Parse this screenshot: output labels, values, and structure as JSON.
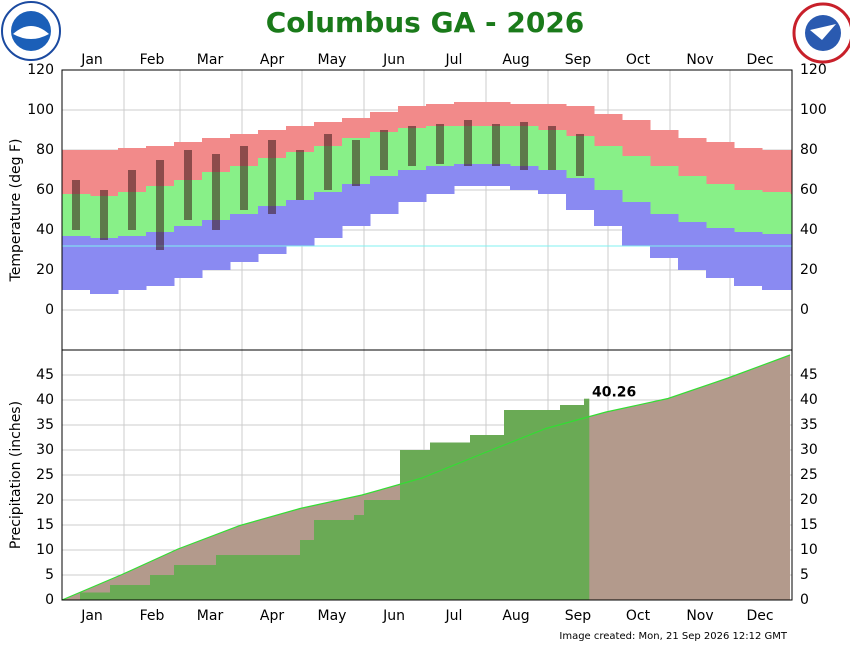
{
  "title": "Columbus GA - 2026",
  "footer": "Image created: Mon, 21 Sep 2026 12:12 GMT",
  "chart_data": [
    {
      "type": "band",
      "ylabel": "Temperature (deg F)",
      "xlim": [
        1,
        366
      ],
      "xticks": [
        {
          "value": 16,
          "label": "Jan"
        },
        {
          "value": 46,
          "label": "Feb"
        },
        {
          "value": 75,
          "label": "Mar"
        },
        {
          "value": 106,
          "label": "Apr"
        },
        {
          "value": 136,
          "label": "May"
        },
        {
          "value": 167,
          "label": "Jun"
        },
        {
          "value": 197,
          "label": "Jul"
        },
        {
          "value": 228,
          "label": "Aug"
        },
        {
          "value": 259,
          "label": "Sep"
        },
        {
          "value": 289,
          "label": "Oct"
        },
        {
          "value": 320,
          "label": "Nov"
        },
        {
          "value": 350,
          "label": "Dec"
        }
      ],
      "xgrid": [
        32,
        60,
        91,
        121,
        152,
        182,
        213,
        244,
        274,
        305,
        335
      ],
      "ylim": [
        -20,
        120
      ],
      "yticks": [
        0,
        20,
        40,
        60,
        80,
        100,
        120
      ],
      "freezing": {
        "value": 32,
        "color": "#80f0f0"
      },
      "x": [
        1,
        15,
        29,
        43,
        57,
        71,
        85,
        99,
        113,
        127,
        141,
        155,
        169,
        183,
        197,
        211,
        225,
        239,
        253,
        267,
        281,
        295,
        309,
        323,
        337,
        351,
        365
      ],
      "record_high": {
        "color": "#f28a8a",
        "values": [
          80,
          80,
          81,
          82,
          84,
          86,
          88,
          90,
          92,
          94,
          96,
          99,
          102,
          103,
          104,
          104,
          103,
          103,
          102,
          98,
          95,
          90,
          86,
          84,
          81,
          80,
          80
        ]
      },
      "normal_high": {
        "color": "#88f088",
        "values": [
          58,
          57,
          59,
          62,
          65,
          69,
          72,
          76,
          79,
          82,
          86,
          89,
          91,
          92,
          92,
          92,
          92,
          90,
          87,
          82,
          77,
          72,
          67,
          63,
          60,
          59,
          58
        ]
      },
      "normal_low": {
        "color": "#8a8af2",
        "values": [
          37,
          36,
          37,
          39,
          42,
          45,
          48,
          52,
          55,
          59,
          63,
          67,
          70,
          72,
          73,
          73,
          72,
          70,
          66,
          60,
          54,
          48,
          44,
          41,
          39,
          38,
          38
        ]
      },
      "record_low": {
        "values": [
          10,
          8,
          10,
          12,
          16,
          20,
          24,
          28,
          32,
          36,
          42,
          48,
          54,
          58,
          62,
          62,
          60,
          58,
          50,
          42,
          32,
          26,
          20,
          16,
          12,
          10,
          10
        ]
      },
      "observed": {
        "color": "#3a1818",
        "high": [
          65,
          60,
          70,
          75,
          80,
          78,
          82,
          85,
          80,
          88,
          85,
          90,
          92,
          93,
          95,
          93,
          94,
          92,
          88,
          null,
          null,
          null,
          null,
          null,
          null,
          null,
          null
        ],
        "low": [
          40,
          35,
          40,
          30,
          45,
          40,
          50,
          48,
          55,
          60,
          62,
          70,
          72,
          73,
          72,
          72,
          70,
          70,
          67,
          null,
          null,
          null,
          null,
          null,
          null,
          null,
          null
        ]
      }
    },
    {
      "type": "cumulative",
      "ylabel": "Precipitation (inches)",
      "xlim": [
        1,
        366
      ],
      "xticks": [
        {
          "value": 16,
          "label": "Jan"
        },
        {
          "value": 46,
          "label": "Feb"
        },
        {
          "value": 75,
          "label": "Mar"
        },
        {
          "value": 106,
          "label": "Apr"
        },
        {
          "value": 136,
          "label": "May"
        },
        {
          "value": 167,
          "label": "Jun"
        },
        {
          "value": 197,
          "label": "Jul"
        },
        {
          "value": 228,
          "label": "Aug"
        },
        {
          "value": 259,
          "label": "Sep"
        },
        {
          "value": 289,
          "label": "Oct"
        },
        {
          "value": 320,
          "label": "Nov"
        },
        {
          "value": 350,
          "label": "Dec"
        }
      ],
      "xgrid": [
        32,
        60,
        91,
        121,
        152,
        182,
        213,
        244,
        274,
        305,
        335
      ],
      "ylim": [
        0,
        50
      ],
      "yticks": [
        0,
        5,
        10,
        15,
        20,
        25,
        30,
        35,
        40,
        45
      ],
      "normal": {
        "color": "#33dd33",
        "fill": "#b39a8c",
        "x": [
          1,
          31,
          59,
          90,
          120,
          151,
          181,
          212,
          243,
          273,
          304,
          334,
          365
        ],
        "values": [
          0,
          5.1,
          10.2,
          14.9,
          18.3,
          21.0,
          24.4,
          29.4,
          34.3,
          37.6,
          40.3,
          44.4,
          49.0
        ]
      },
      "observed": {
        "color": "#6aaa55",
        "x": [
          1,
          10,
          25,
          45,
          57,
          78,
          120,
          127,
          147,
          152,
          170,
          185,
          205,
          222,
          250,
          262,
          264
        ],
        "values": [
          0,
          1.5,
          3,
          5,
          7,
          9,
          12,
          16,
          17,
          20,
          30,
          31.5,
          33,
          38,
          39,
          40.26,
          40.26
        ]
      }
    }
  ]
}
